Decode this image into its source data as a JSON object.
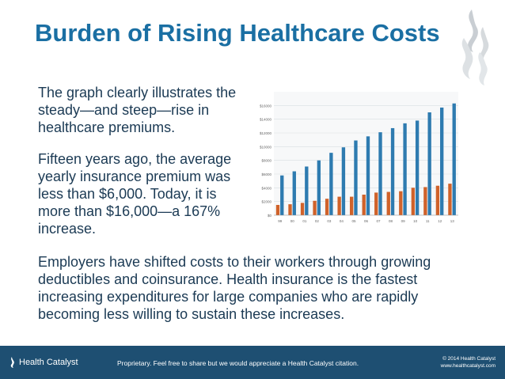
{
  "slide": {
    "title": "Burden of Rising Healthcare Costs",
    "paragraph1": "The graph clearly illustrates the steady—and steep—rise in healthcare premiums.",
    "paragraph2": "Fifteen years ago, the average yearly insurance premium was less than $6,000. Today, it is more than $16,000—a 167% increase.",
    "paragraph3": "Employers have shifted costs to their workers through growing deductibles and coinsurance. Health insurance is the fastest increasing expenditures for large companies who are rapidly becoming less willing to sustain these increases."
  },
  "footer": {
    "logo_text": "Health Catalyst",
    "note": "Proprietary. Feel free to share but we would appreciate a Health Catalyst citation.",
    "copyright": "© 2014 Health Catalyst",
    "website": "www.healthcatalyst.com"
  },
  "colors": {
    "title": "#1a6fa3",
    "body_text": "#1b3a54",
    "footer_bg": "#1e4f72",
    "series_premium": "#2e7bb0",
    "series_worker": "#d0622a"
  },
  "icons": {
    "logo": "flame-icon",
    "footer_logo": "flame-small-icon"
  },
  "chart_data": {
    "type": "bar",
    "categories": [
      "99",
      "00",
      "01",
      "02",
      "03",
      "04",
      "05",
      "06",
      "07",
      "08",
      "09",
      "10",
      "11",
      "12",
      "13"
    ],
    "yticks": [
      "$0",
      "$2000",
      "$4000",
      "$6000",
      "$8000",
      "$10000",
      "$12000",
      "$14000",
      "$16000"
    ],
    "ylim": [
      0,
      18000
    ],
    "grid": true,
    "series": [
      {
        "values": [
          5800,
          6400,
          7100,
          8000,
          9100,
          9900,
          10900,
          11500,
          12100,
          12700,
          13400,
          13800,
          15000,
          15700,
          16300
        ]
      },
      {
        "values": [
          1500,
          1600,
          1800,
          2100,
          2400,
          2700,
          2700,
          3000,
          3300,
          3400,
          3500,
          4000,
          4100,
          4300,
          4600
        ]
      }
    ]
  }
}
